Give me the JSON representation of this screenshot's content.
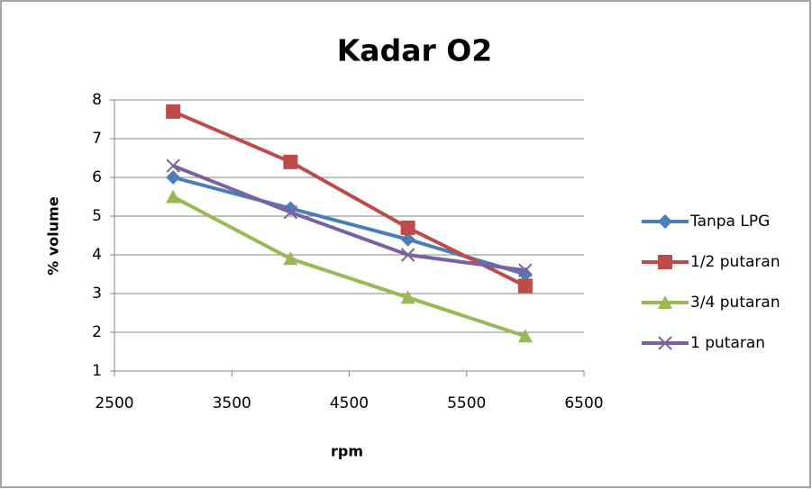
{
  "chart_data": {
    "type": "line",
    "title": "Kadar O2",
    "x_label": "rpm",
    "y_label": "% volume",
    "x": [
      3000,
      4000,
      5000,
      6000
    ],
    "series": [
      {
        "name": "Tanpa LPG",
        "color": "#4a7ebb",
        "marker": "diamond",
        "values": [
          6.0,
          5.2,
          4.4,
          3.5
        ]
      },
      {
        "name": "1/2 putaran",
        "color": "#be4b48",
        "marker": "square",
        "values": [
          7.7,
          6.4,
          4.7,
          3.2
        ]
      },
      {
        "name": "3/4 putaran",
        "color": "#98b954",
        "marker": "triangle",
        "values": [
          5.5,
          3.9,
          2.9,
          1.9
        ]
      },
      {
        "name": "1 putaran",
        "color": "#7d60a0",
        "marker": "x",
        "values": [
          6.3,
          5.1,
          4.0,
          3.6
        ]
      }
    ],
    "xlim": [
      2500,
      6500
    ],
    "xticks": [
      2500,
      3500,
      4500,
      5500,
      6500
    ],
    "ylim": [
      1,
      8
    ],
    "yticks": [
      1,
      2,
      3,
      4,
      5,
      6,
      7,
      8
    ],
    "grid": true,
    "legend": "right"
  }
}
